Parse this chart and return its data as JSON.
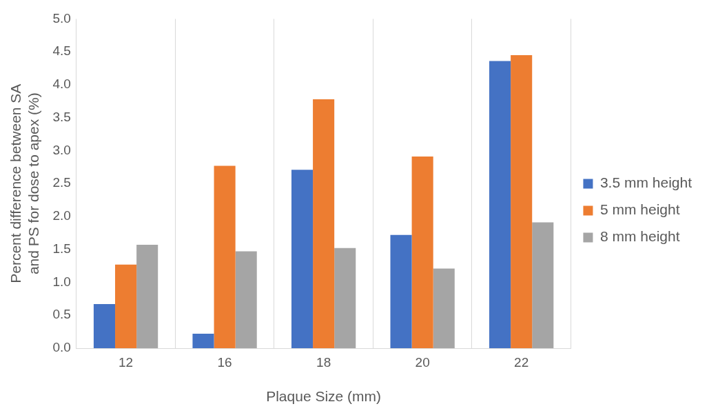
{
  "chart_data": {
    "type": "bar",
    "xlabel": "Plaque Size (mm)",
    "ylabel": "Percent difference between SA and PS for dose to apex (%)",
    "categories": [
      "12",
      "16",
      "18",
      "20",
      "22"
    ],
    "series": [
      {
        "name": "3.5 mm height",
        "color": "#4472c4",
        "values": [
          0.67,
          0.22,
          2.71,
          1.72,
          4.36
        ]
      },
      {
        "name": "5 mm height",
        "color": "#ed7d31",
        "values": [
          1.27,
          2.77,
          3.78,
          2.91,
          4.45
        ]
      },
      {
        "name": "8 mm height",
        "color": "#a5a5a5",
        "values": [
          1.57,
          1.47,
          1.52,
          1.21,
          1.91
        ]
      }
    ],
    "ylim": [
      0,
      5
    ],
    "yticks": [
      {
        "value": 0,
        "label": "0.0"
      },
      {
        "value": 0.5,
        "label": "0.5"
      },
      {
        "value": 1,
        "label": "1.0"
      },
      {
        "value": 1.5,
        "label": "1.5"
      },
      {
        "value": 2,
        "label": "2.0"
      },
      {
        "value": 2.5,
        "label": "2.5"
      },
      {
        "value": 3,
        "label": "3.0"
      },
      {
        "value": 3.5,
        "label": "3.5"
      },
      {
        "value": 4,
        "label": "4.0"
      },
      {
        "value": 4.5,
        "label": "4.5"
      },
      {
        "value": 5,
        "label": "5.0"
      }
    ],
    "grid": "x",
    "legend": "right"
  }
}
